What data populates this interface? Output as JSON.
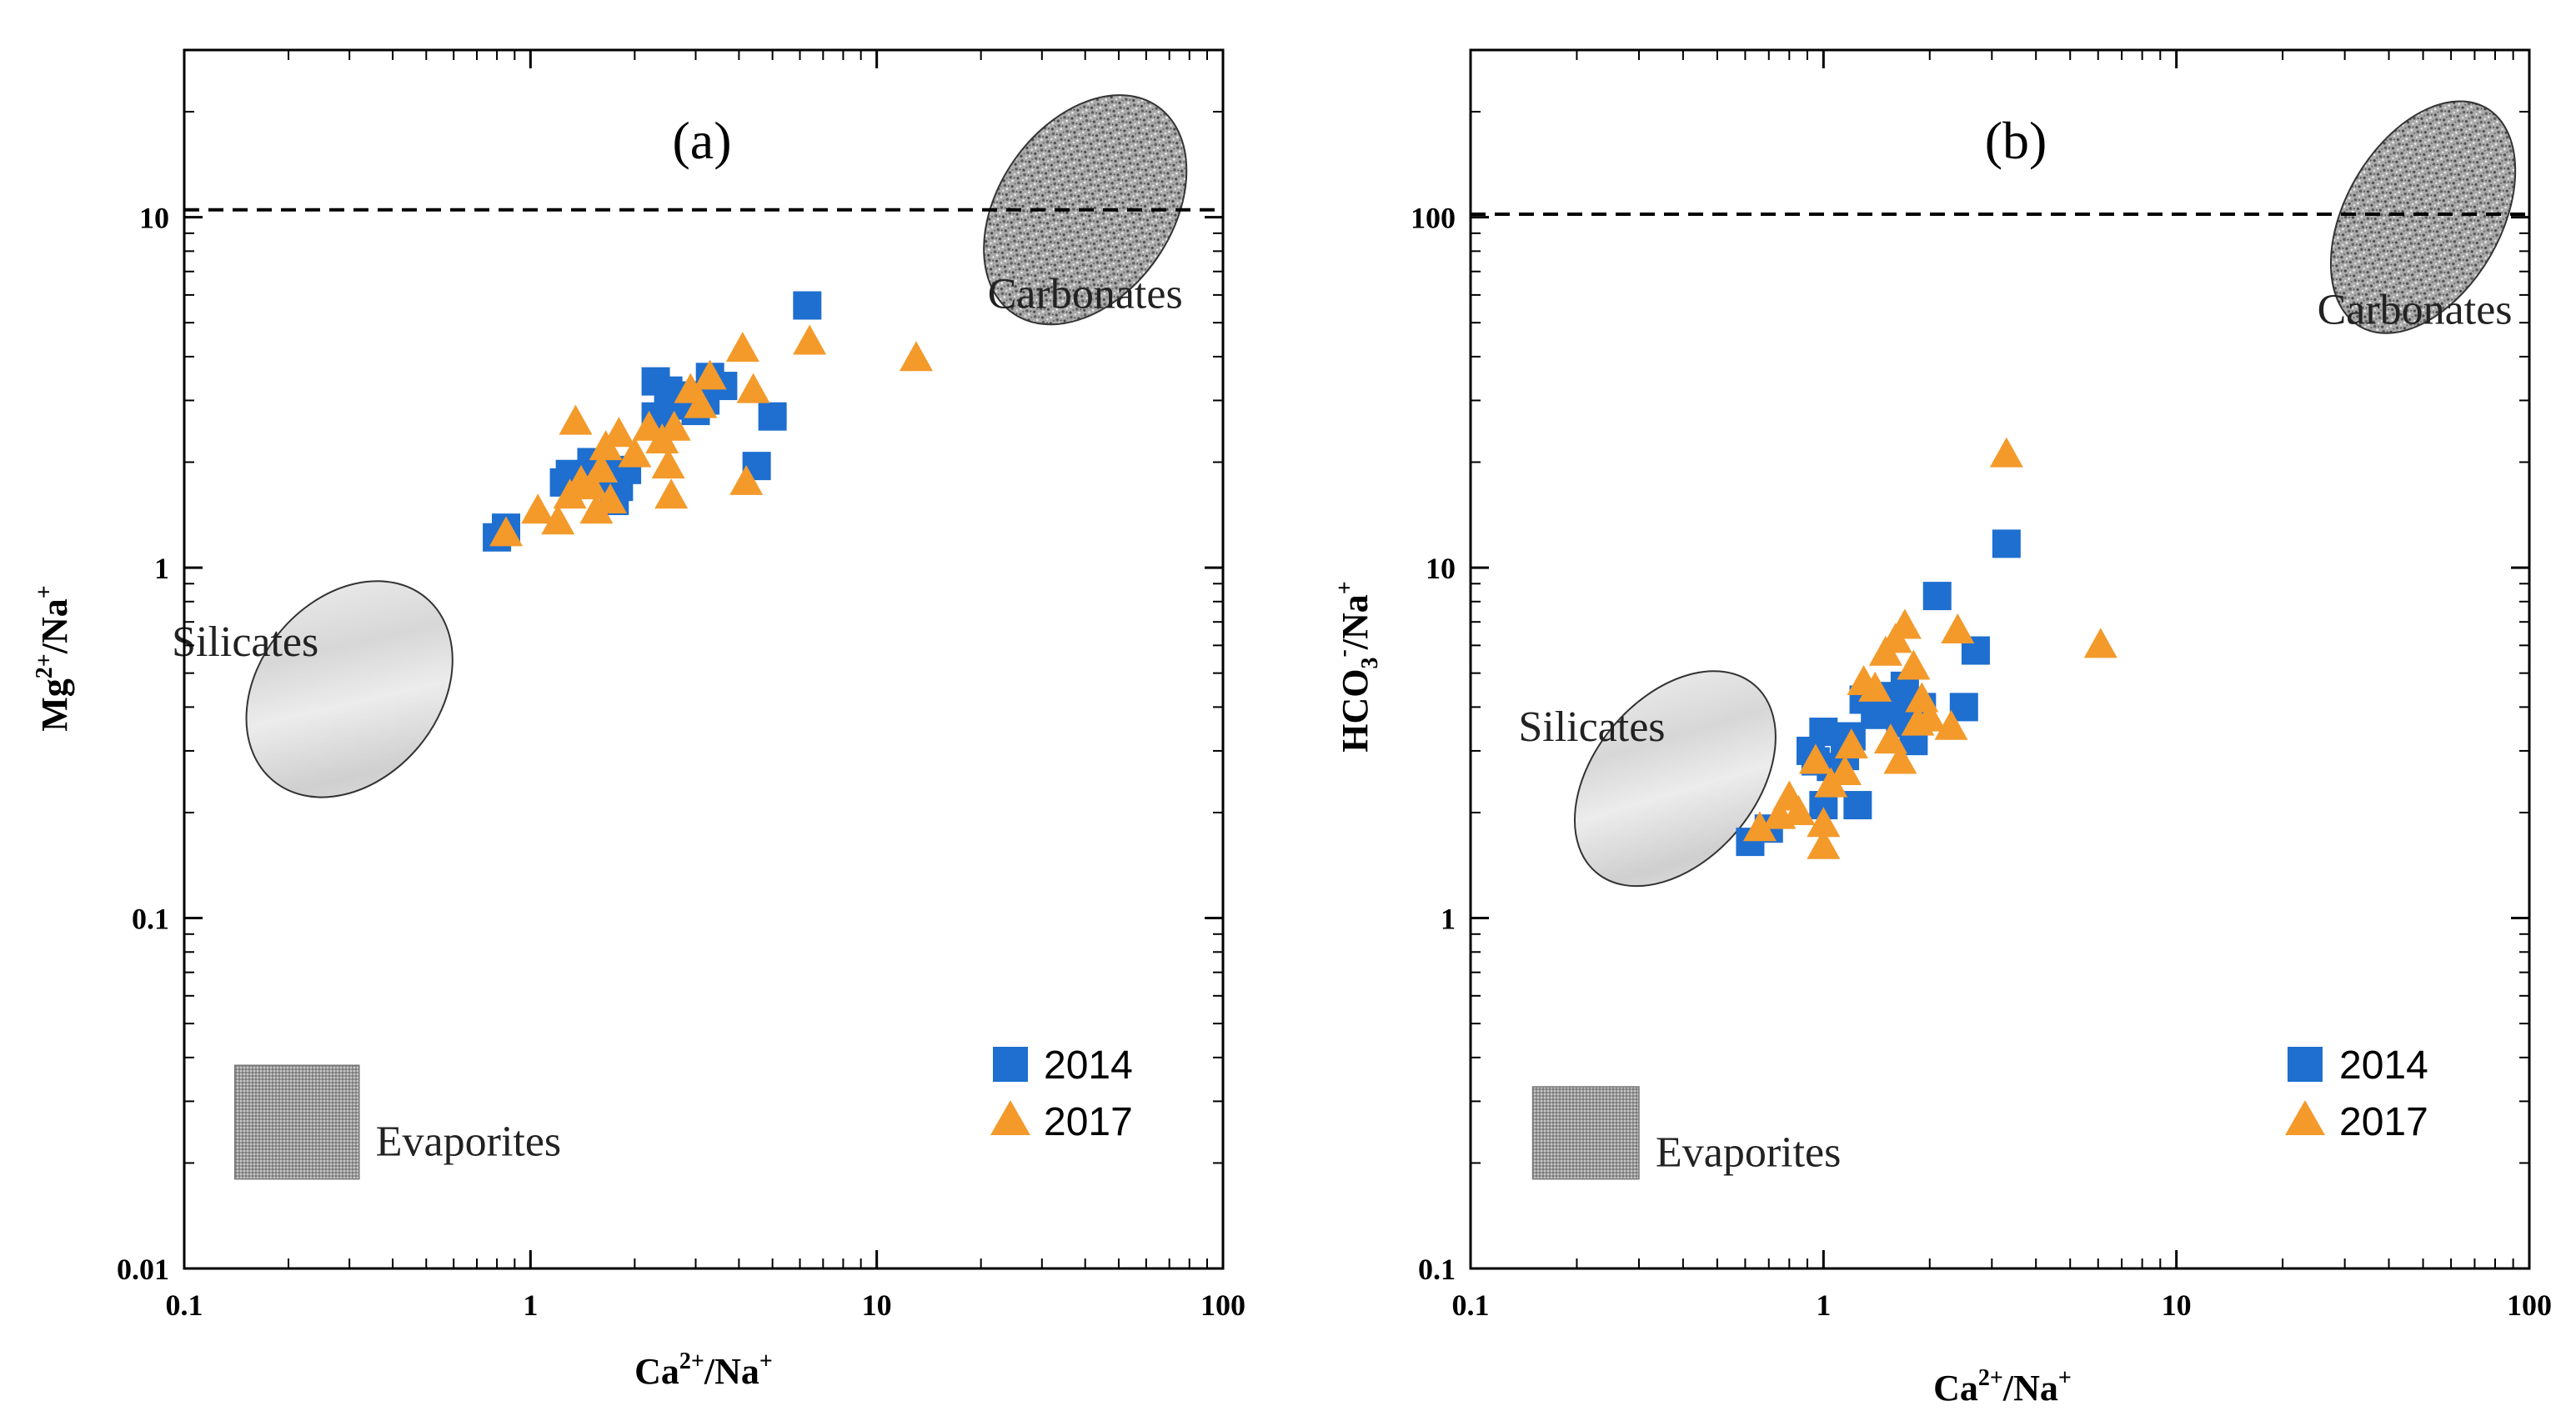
{
  "chart_data": [
    {
      "type": "scatter",
      "panel_label": "(a)",
      "xlabel": {
        "base": "Ca",
        "sup": "2+",
        "rest": "/Na",
        "sup2": "+"
      },
      "ylabel": {
        "base": "Mg",
        "sup": "2+",
        "rest": "/Na",
        "sup2": "+"
      },
      "xscale": "log",
      "yscale": "log",
      "xlim": [
        0.1,
        100
      ],
      "ylim": [
        0.01,
        30
      ],
      "xticks": [
        {
          "v": 0.1,
          "label": "0.1"
        },
        {
          "v": 1,
          "label": "1"
        },
        {
          "v": 10,
          "label": "10"
        },
        {
          "v": 100,
          "label": "100"
        }
      ],
      "yticks": [
        {
          "v": 0.01,
          "label": "0.01"
        },
        {
          "v": 0.1,
          "label": "0.1"
        },
        {
          "v": 1,
          "label": "1"
        },
        {
          "v": 10,
          "label": "10"
        }
      ],
      "reference_line": {
        "y": 10.5,
        "style": "dashed"
      },
      "regions": [
        {
          "name": "Carbonates",
          "label": "Carbonates",
          "center": [
            40,
            10.5
          ],
          "rx_decades": 0.25,
          "ry_decades": 0.36,
          "angle_deg": -55,
          "texture": "speckled"
        },
        {
          "name": "Silicates",
          "label": "Silicates",
          "center": [
            0.3,
            0.45
          ],
          "rx_decades": 0.26,
          "ry_decades": 0.34,
          "angle_deg": -50,
          "texture": "light"
        },
        {
          "name": "Evaporites",
          "label": "Evaporites",
          "box": [
            [
              0.14,
              0.018
            ],
            [
              0.32,
              0.038
            ]
          ],
          "texture": "grid"
        }
      ],
      "legend": {
        "position": "bottom-right",
        "entries": [
          {
            "label": "2014",
            "marker": "square",
            "color": "#1E6FD0"
          },
          {
            "label": "2017",
            "marker": "triangle",
            "color": "#F39A2B"
          }
        ]
      },
      "series": [
        {
          "name": "2014",
          "marker": "square",
          "color": "#1E6FD0",
          "points": [
            [
              0.8,
              1.22
            ],
            [
              0.85,
              1.3
            ],
            [
              1.25,
              1.75
            ],
            [
              1.3,
              1.85
            ],
            [
              1.4,
              1.8
            ],
            [
              1.5,
              2.0
            ],
            [
              1.6,
              1.95
            ],
            [
              1.7,
              1.85
            ],
            [
              1.75,
              1.55
            ],
            [
              1.8,
              1.7
            ],
            [
              1.9,
              1.9
            ],
            [
              2.3,
              2.7
            ],
            [
              2.3,
              3.4
            ],
            [
              2.5,
              3.2
            ],
            [
              2.6,
              2.9
            ],
            [
              2.8,
              3.1
            ],
            [
              3.0,
              2.8
            ],
            [
              3.2,
              3.0
            ],
            [
              3.3,
              3.5
            ],
            [
              3.6,
              3.3
            ],
            [
              4.5,
              1.95
            ],
            [
              5.0,
              2.7
            ],
            [
              6.3,
              5.6
            ]
          ]
        },
        {
          "name": "2017",
          "marker": "triangle",
          "color": "#F39A2B",
          "points": [
            [
              0.85,
              1.25
            ],
            [
              1.05,
              1.45
            ],
            [
              1.2,
              1.35
            ],
            [
              1.3,
              1.6
            ],
            [
              1.35,
              2.6
            ],
            [
              1.4,
              1.75
            ],
            [
              1.5,
              1.7
            ],
            [
              1.55,
              1.45
            ],
            [
              1.6,
              1.9
            ],
            [
              1.65,
              2.2
            ],
            [
              1.7,
              1.55
            ],
            [
              1.8,
              2.4
            ],
            [
              2.0,
              2.1
            ],
            [
              2.2,
              2.5
            ],
            [
              2.4,
              2.3
            ],
            [
              2.5,
              1.95
            ],
            [
              2.55,
              1.6
            ],
            [
              2.6,
              2.5
            ],
            [
              2.9,
              3.2
            ],
            [
              3.1,
              2.9
            ],
            [
              3.3,
              3.5
            ],
            [
              4.1,
              4.2
            ],
            [
              4.2,
              1.75
            ],
            [
              4.4,
              3.2
            ],
            [
              6.4,
              4.4
            ],
            [
              13.0,
              3.95
            ]
          ]
        }
      ]
    },
    {
      "type": "scatter",
      "panel_label": "(b)",
      "xlabel": {
        "base": "Ca",
        "sup": "2+",
        "rest": "/Na",
        "sup2": "+"
      },
      "ylabel": {
        "base": "HCO",
        "sub": "3",
        "sup": "-",
        "rest": "/Na",
        "sup2": "+"
      },
      "xscale": "log",
      "yscale": "log",
      "xlim": [
        0.1,
        100
      ],
      "ylim": [
        0.1,
        300
      ],
      "xticks": [
        {
          "v": 0.1,
          "label": "0.1"
        },
        {
          "v": 1,
          "label": "1"
        },
        {
          "v": 10,
          "label": "10"
        },
        {
          "v": 100,
          "label": "100"
        }
      ],
      "yticks": [
        {
          "v": 0.1,
          "label": "0.1"
        },
        {
          "v": 1,
          "label": "1"
        },
        {
          "v": 10,
          "label": "10"
        },
        {
          "v": 100,
          "label": "100"
        }
      ],
      "reference_line": {
        "y": 102,
        "style": "dashed"
      },
      "regions": [
        {
          "name": "Carbonates",
          "label": "Carbonates",
          "center": [
            50,
            100
          ],
          "rx_decades": 0.22,
          "ry_decades": 0.36,
          "angle_deg": -60,
          "texture": "speckled"
        },
        {
          "name": "Silicates",
          "label": "Silicates",
          "center": [
            0.38,
            2.5
          ],
          "rx_decades": 0.23,
          "ry_decades": 0.35,
          "angle_deg": -50,
          "texture": "light"
        },
        {
          "name": "Evaporites",
          "label": "Evaporites",
          "box": [
            [
              0.15,
              0.18
            ],
            [
              0.3,
              0.33
            ]
          ],
          "texture": "grid"
        }
      ],
      "legend": {
        "position": "bottom-right",
        "entries": [
          {
            "label": "2014",
            "marker": "square",
            "color": "#1E6FD0"
          },
          {
            "label": "2017",
            "marker": "triangle",
            "color": "#F39A2B"
          }
        ]
      },
      "series": [
        {
          "name": "2014",
          "marker": "square",
          "color": "#1E6FD0",
          "points": [
            [
              0.62,
              1.65
            ],
            [
              0.7,
              1.8
            ],
            [
              0.92,
              3.0
            ],
            [
              0.95,
              2.8
            ],
            [
              1.0,
              2.1
            ],
            [
              1.0,
              3.4
            ],
            [
              1.05,
              2.7
            ],
            [
              1.15,
              2.9
            ],
            [
              1.2,
              3.3
            ],
            [
              1.25,
              2.1
            ],
            [
              1.3,
              4.2
            ],
            [
              1.4,
              3.8
            ],
            [
              1.5,
              4.3
            ],
            [
              1.6,
              3.9
            ],
            [
              1.65,
              3.6
            ],
            [
              1.7,
              4.6
            ],
            [
              1.8,
              3.2
            ],
            [
              1.9,
              4.0
            ],
            [
              2.1,
              8.3
            ],
            [
              2.5,
              4.0
            ],
            [
              2.7,
              5.8
            ],
            [
              3.3,
              11.7
            ]
          ]
        },
        {
          "name": "2017",
          "marker": "triangle",
          "color": "#F39A2B",
          "points": [
            [
              0.66,
              1.8
            ],
            [
              0.75,
              1.95
            ],
            [
              0.8,
              2.2
            ],
            [
              0.85,
              2.0
            ],
            [
              0.95,
              2.8
            ],
            [
              1.0,
              1.6
            ],
            [
              1.0,
              1.85
            ],
            [
              1.05,
              2.4
            ],
            [
              1.15,
              2.6
            ],
            [
              1.2,
              3.1
            ],
            [
              1.3,
              4.7
            ],
            [
              1.4,
              4.5
            ],
            [
              1.5,
              5.7
            ],
            [
              1.55,
              3.2
            ],
            [
              1.6,
              6.2
            ],
            [
              1.65,
              2.8
            ],
            [
              1.7,
              6.8
            ],
            [
              1.8,
              5.2
            ],
            [
              1.85,
              3.6
            ],
            [
              1.9,
              4.2
            ],
            [
              2.0,
              3.7
            ],
            [
              2.3,
              3.5
            ],
            [
              2.4,
              6.6
            ],
            [
              3.3,
              21.0
            ],
            [
              6.1,
              6.0
            ]
          ]
        }
      ]
    }
  ]
}
